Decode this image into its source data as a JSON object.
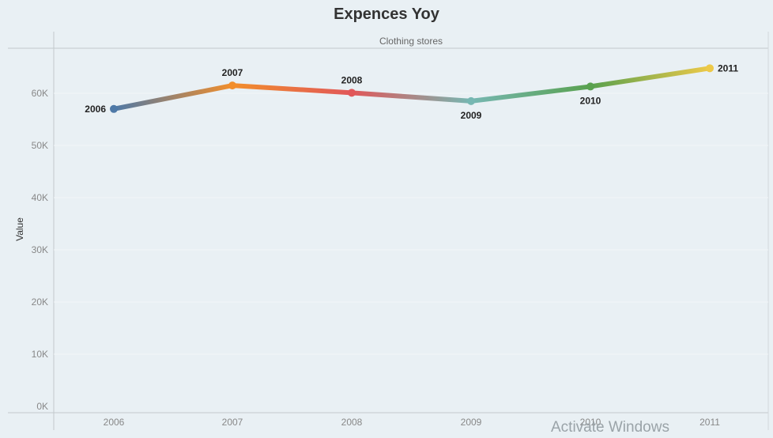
{
  "chart_data": {
    "type": "line",
    "title": "Expences Yoy",
    "subtitle": "Clothing stores",
    "xlabel": "",
    "ylabel": "Value",
    "x": [
      "2006",
      "2007",
      "2008",
      "2009",
      "2010",
      "2011"
    ],
    "values": [
      57000,
      61500,
      60100,
      58500,
      61300,
      64800
    ],
    "point_labels": [
      "2006",
      "2007",
      "2008",
      "2009",
      "2010",
      "2011"
    ],
    "point_label_positions": [
      "left",
      "above",
      "above",
      "below",
      "below",
      "right"
    ],
    "ylim": [
      0,
      69000
    ],
    "yticks": [
      0,
      10000,
      20000,
      30000,
      40000,
      50000,
      60000
    ],
    "ytick_labels": [
      "0K",
      "10K",
      "20K",
      "30K",
      "40K",
      "50K",
      "60K"
    ],
    "colors": [
      "#4e79a7",
      "#f28e2b",
      "#e15759",
      "#76b7b2",
      "#59a14f",
      "#edc948"
    ],
    "grid": true,
    "legend": "none"
  },
  "watermark": "Activate Windows"
}
